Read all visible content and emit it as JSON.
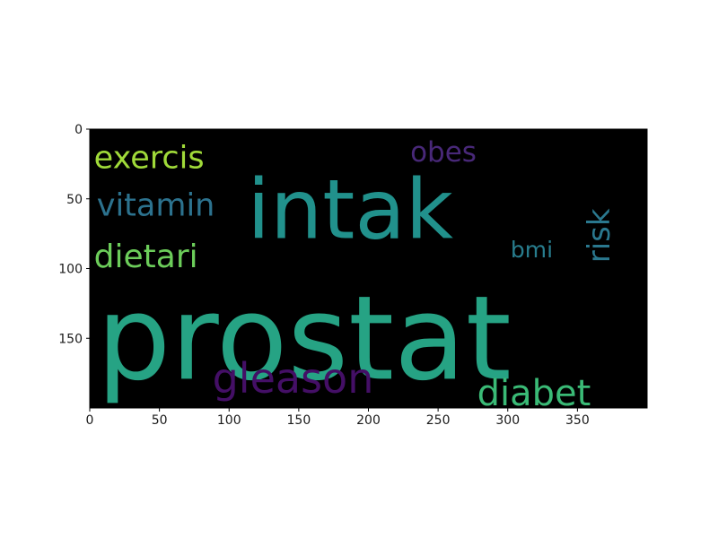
{
  "chart_data": {
    "type": "wordcloud",
    "background": "#000000",
    "xlim": [
      0,
      400
    ],
    "ylim": [
      200,
      0
    ],
    "x_ticks": [
      0,
      50,
      100,
      150,
      200,
      250,
      300,
      350
    ],
    "y_ticks": [
      0,
      50,
      100,
      150
    ],
    "words": [
      {
        "text": "prostat",
        "x": 5,
        "y": 179,
        "font_size": 130,
        "rotation": 0,
        "color": "#26a384"
      },
      {
        "text": "intak",
        "x": 113,
        "y": 78,
        "font_size": 92,
        "rotation": 0,
        "color": "#21918c"
      },
      {
        "text": "gleason",
        "x": 88,
        "y": 189,
        "font_size": 46,
        "rotation": 0,
        "color": "#440f66"
      },
      {
        "text": "diabet",
        "x": 278,
        "y": 198,
        "font_size": 40,
        "rotation": 0,
        "color": "#3aba76"
      },
      {
        "text": "exercis",
        "x": 3,
        "y": 28,
        "font_size": 35,
        "rotation": 0,
        "color": "#a0da39"
      },
      {
        "text": "vitamin",
        "x": 5,
        "y": 62,
        "font_size": 35,
        "rotation": 0,
        "color": "#2c728e"
      },
      {
        "text": "dietari",
        "x": 3,
        "y": 99,
        "font_size": 36,
        "rotation": 0,
        "color": "#6ccd5a"
      },
      {
        "text": "obes",
        "x": 230,
        "y": 23,
        "font_size": 31,
        "rotation": 0,
        "color": "#482878"
      },
      {
        "text": "risk",
        "x": 373,
        "y": 96,
        "font_size": 34,
        "rotation": -90,
        "color": "#2a788e"
      },
      {
        "text": "bmi",
        "x": 302,
        "y": 92,
        "font_size": 25,
        "rotation": 0,
        "color": "#287d8e"
      }
    ]
  }
}
